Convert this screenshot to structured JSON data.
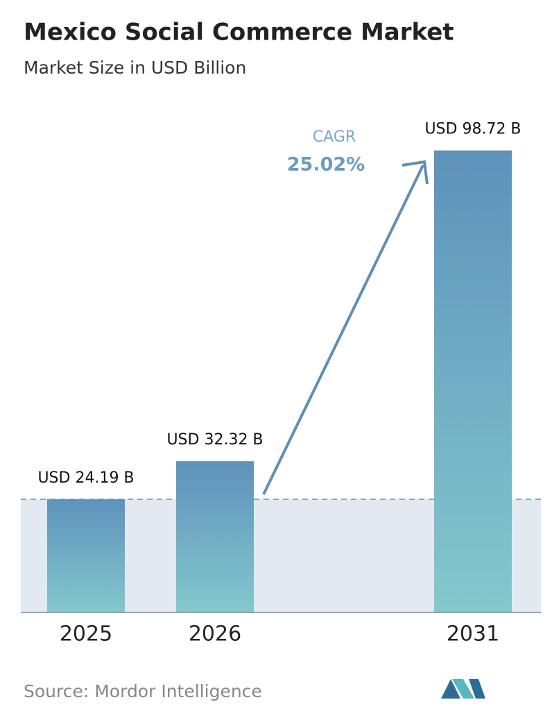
{
  "chart_data": {
    "type": "bar",
    "title": "Mexico Social Commerce Market",
    "subtitle": "Market Size in USD Billion",
    "categories": [
      "2025",
      "2026",
      "2031"
    ],
    "values": [
      24.19,
      32.32,
      98.72
    ],
    "value_labels": [
      "USD 24.19 B",
      "USD 32.32 B",
      "USD 98.72 B"
    ],
    "gradient": [
      "#5e92bb",
      "#84c8cd"
    ],
    "ylim": [
      0,
      100
    ],
    "annotation": {
      "label": "CAGR",
      "value": "25.02%"
    },
    "source": "Source:  Mordor Intelligence"
  }
}
